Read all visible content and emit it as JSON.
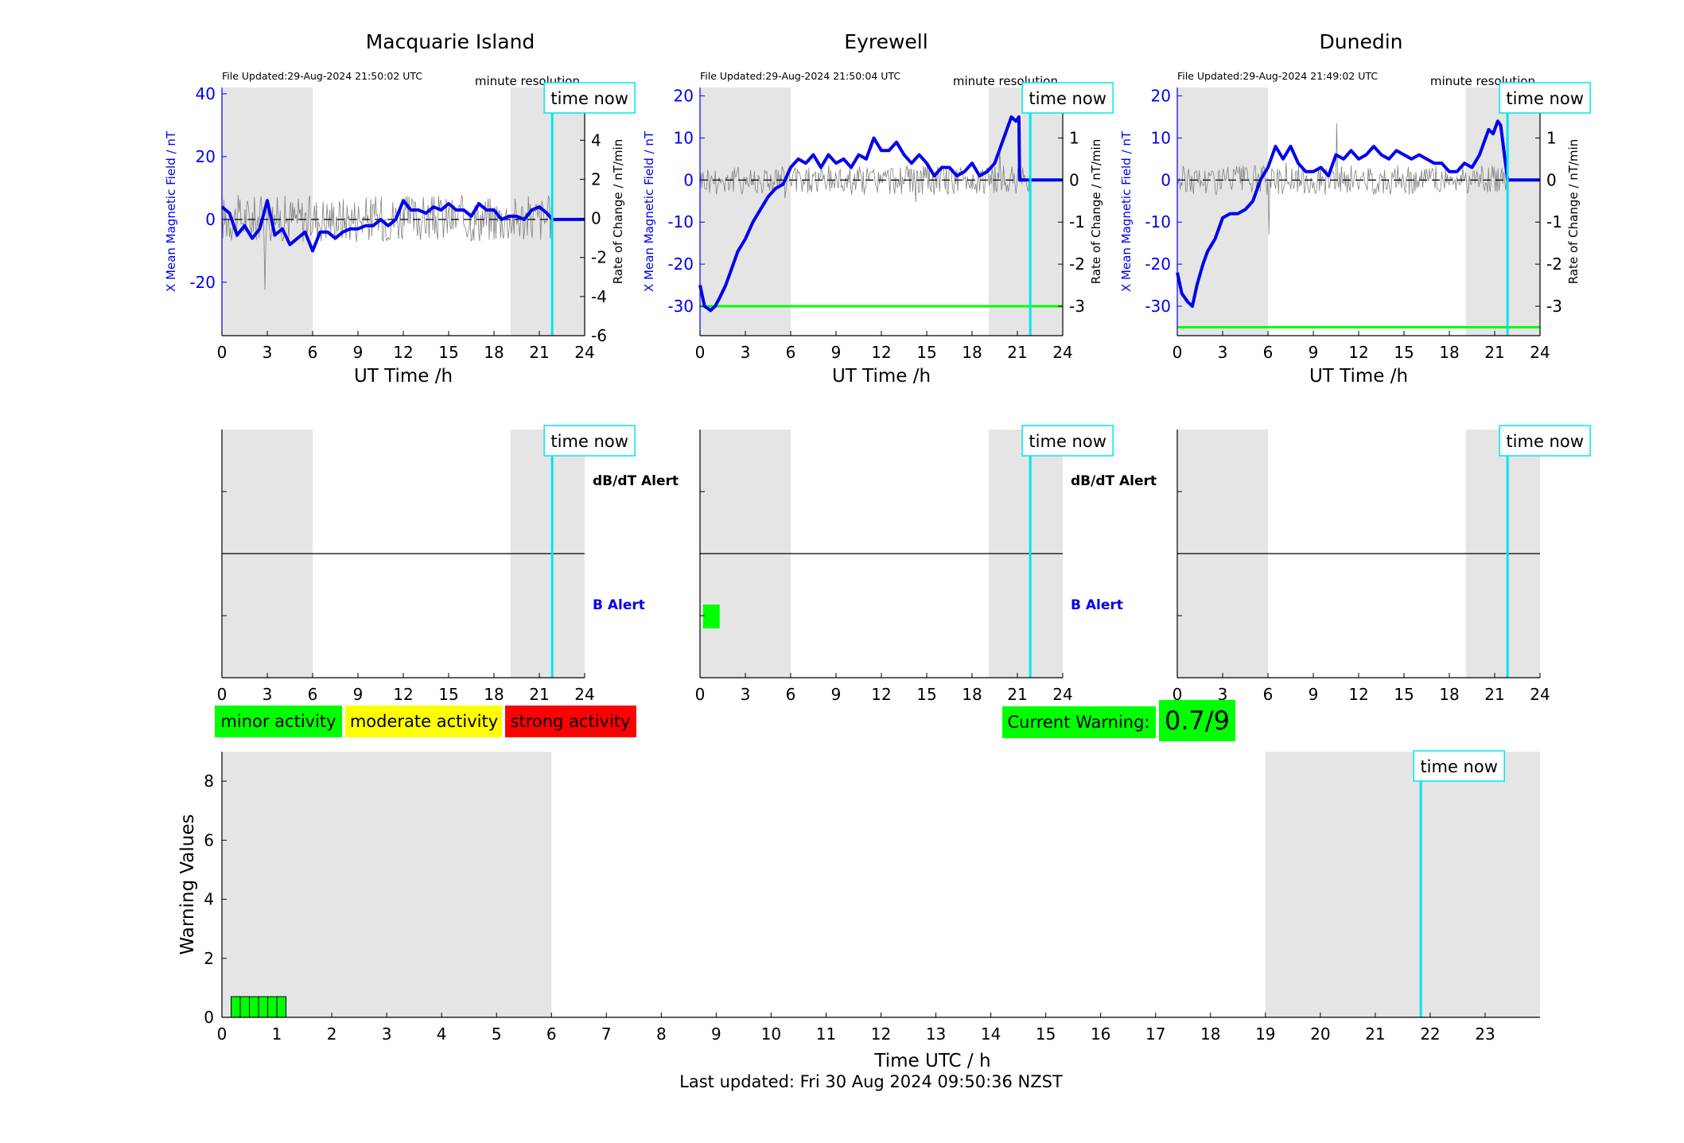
{
  "footer": {
    "last_updated": "Last updated: Fri 30 Aug 2024 09:50:36 NZST"
  },
  "labels": {
    "time_now": "time now",
    "x_label_stations": "UT Time /h",
    "y_label_left": "X Mean Magnetic Field / nT",
    "y_label_right": "Rate of Change / nT/min",
    "file_updated_prefix": "File Updated:",
    "minute_resolution": "minute resolution",
    "dbdt_alert": "dB/dT Alert",
    "b_alert": "B Alert"
  },
  "legend": {
    "minor": {
      "label": "minor activity",
      "color": "#00ff00"
    },
    "moderate": {
      "label": "moderate activity",
      "color": "#ffff00"
    },
    "strong": {
      "label": "strong activity",
      "color": "#ff0000"
    }
  },
  "current_warning": {
    "label": "Current Warning:",
    "value": "0.7/9",
    "color": "#00ff00"
  },
  "colors": {
    "field_line": "#0000ee",
    "rate_line": "#808080",
    "night_shade": "#e5e5e5",
    "time_now_line": "#00e5ee",
    "threshold_line": "#00ff00"
  },
  "chart_data": [
    {
      "type": "line",
      "title": "Macquarie Island",
      "file_updated": "29-Aug-2024 21:50:02 UTC",
      "xlabel": "UT Time /h",
      "ylabel": "X Mean Magnetic Field / nT",
      "ylabel_right": "Rate of Change / nT/min",
      "xlim": [
        0,
        24
      ],
      "ylim": [
        -37,
        42
      ],
      "yticks": [
        -20,
        0,
        20,
        40
      ],
      "ylim_right": [
        -6,
        6.7
      ],
      "yticks_right": [
        -6,
        -4,
        -2,
        0,
        2,
        4,
        6
      ],
      "xticks": [
        0,
        3,
        6,
        9,
        12,
        15,
        18,
        21,
        24
      ],
      "night_shading": [
        [
          0,
          6
        ],
        [
          19.1,
          24
        ]
      ],
      "time_now": 21.85,
      "threshold": null,
      "series": [
        {
          "values_x": [
            0,
            0.5,
            1,
            1.5,
            2,
            2.5,
            3,
            3.5,
            4,
            4.5,
            5,
            5.5,
            6,
            6.5,
            7,
            7.5,
            8,
            8.5,
            9,
            9.5,
            10,
            10.5,
            11,
            11.5,
            12,
            12.5,
            13,
            13.5,
            14,
            14.5,
            15,
            15.5,
            16,
            16.5,
            17,
            17.5,
            18,
            18.5,
            19,
            19.5,
            20,
            20.5,
            21,
            21.5,
            21.85,
            24
          ],
          "values_y": [
            4,
            2,
            -5,
            -2,
            -6,
            -3,
            6,
            -5,
            -3,
            -8,
            -6,
            -4,
            -10,
            -4,
            -4,
            -6,
            -4,
            -3,
            -3,
            -2,
            -2,
            0,
            -2,
            0,
            6,
            3,
            3,
            2,
            4,
            3,
            5,
            3,
            3,
            1,
            5,
            3,
            3,
            0,
            1,
            1,
            0,
            3,
            4,
            2,
            0,
            0
          ]
        }
      ]
    },
    {
      "type": "line",
      "title": "Eyrewell",
      "file_updated": "29-Aug-2024 21:50:04 UTC",
      "xlabel": "UT Time /h",
      "ylabel": "X Mean Magnetic Field / nT",
      "ylabel_right": "Rate of Change / nT/min",
      "xlim": [
        0,
        24
      ],
      "ylim": [
        -37,
        22
      ],
      "yticks": [
        -30,
        -20,
        -10,
        0,
        10,
        20
      ],
      "ylim_right": [
        -3.7,
        2.2
      ],
      "yticks_right": [
        -3,
        -2,
        -1,
        0,
        1,
        2
      ],
      "xticks": [
        0,
        3,
        6,
        9,
        12,
        15,
        18,
        21,
        24
      ],
      "night_shading": [
        [
          0,
          6
        ],
        [
          19.1,
          24
        ]
      ],
      "time_now": 21.85,
      "threshold": -30,
      "series": [
        {
          "values_x": [
            0,
            0.3,
            0.7,
            1,
            1.3,
            1.7,
            2,
            2.5,
            3,
            3.5,
            4,
            4.5,
            5,
            5.5,
            6,
            6.5,
            7,
            7.5,
            8,
            8.5,
            9,
            9.5,
            10,
            10.5,
            11,
            11.5,
            12,
            12.5,
            13,
            13.5,
            14,
            14.5,
            15,
            15.5,
            16,
            16.5,
            17,
            17.5,
            18,
            18.5,
            19,
            19.5,
            20,
            20.3,
            20.6,
            20.9,
            21.1,
            21.15,
            21.85,
            24
          ],
          "values_y": [
            -25,
            -30,
            -31,
            -30,
            -28,
            -25,
            -22,
            -17,
            -14,
            -10,
            -7,
            -4,
            -2,
            -1,
            3,
            5,
            4,
            6,
            3,
            6,
            4,
            5,
            3,
            6,
            5,
            10,
            7,
            7,
            9,
            6,
            4,
            6,
            4,
            1,
            3,
            3,
            1,
            2,
            4,
            1,
            2,
            4,
            9,
            12,
            15,
            14,
            15,
            0,
            0,
            0
          ]
        }
      ]
    },
    {
      "type": "line",
      "title": "Dunedin",
      "file_updated": "29-Aug-2024 21:49:02 UTC",
      "xlabel": "UT Time /h",
      "ylabel": "X Mean Magnetic Field / nT",
      "ylabel_right": "Rate of Change / nT/min",
      "xlim": [
        0,
        24
      ],
      "ylim": [
        -37,
        22
      ],
      "yticks": [
        -30,
        -20,
        -10,
        0,
        10,
        20
      ],
      "ylim_right": [
        -3.7,
        2.2
      ],
      "yticks_right": [
        -3,
        -2,
        -1,
        0,
        1,
        2
      ],
      "xticks": [
        0,
        3,
        6,
        9,
        12,
        15,
        18,
        21,
        24
      ],
      "night_shading": [
        [
          0,
          6
        ],
        [
          19.1,
          24
        ]
      ],
      "time_now": 21.85,
      "threshold": -35,
      "series": [
        {
          "values_x": [
            0,
            0.3,
            0.7,
            1,
            1.3,
            1.7,
            2,
            2.5,
            3,
            3.5,
            4,
            4.5,
            5,
            5.5,
            6,
            6.5,
            7,
            7.5,
            8,
            8.5,
            9,
            9.5,
            10,
            10.5,
            11,
            11.5,
            12,
            12.5,
            13,
            13.5,
            14,
            14.5,
            15,
            15.5,
            16,
            16.5,
            17,
            17.5,
            18,
            18.5,
            19,
            19.5,
            20,
            20.3,
            20.6,
            20.9,
            21.2,
            21.4,
            21.85,
            24
          ],
          "values_y": [
            -22,
            -27,
            -29,
            -30,
            -25,
            -20,
            -17,
            -14,
            -9,
            -8,
            -8,
            -7,
            -5,
            0,
            3,
            8,
            5,
            8,
            4,
            2,
            2,
            3,
            1,
            6,
            5,
            7,
            5,
            6,
            8,
            6,
            5,
            7,
            6,
            5,
            6,
            5,
            4,
            4,
            2,
            2,
            4,
            3,
            6,
            9,
            12,
            11,
            14,
            13,
            0,
            0
          ]
        }
      ]
    },
    {
      "type": "bar",
      "xlabel": "Time UTC / h",
      "ylabel": "Warning Values",
      "xlim": [
        0,
        24
      ],
      "ylim": [
        0,
        9
      ],
      "yticks": [
        0,
        2,
        4,
        6,
        8
      ],
      "xticks": [
        0,
        1,
        2,
        3,
        4,
        5,
        6,
        7,
        8,
        9,
        10,
        11,
        12,
        13,
        14,
        15,
        16,
        17,
        18,
        19,
        20,
        21,
        22,
        23
      ],
      "night_shading": [
        [
          0,
          6
        ],
        [
          19,
          24
        ]
      ],
      "time_now": 21.83,
      "bar_width_h": 0.1667,
      "x": [
        0.25,
        0.4167,
        0.5833,
        0.75,
        0.9167,
        1.0833
      ],
      "values": [
        0.7,
        0.7,
        0.7,
        0.7,
        0.7,
        0.7
      ]
    }
  ]
}
